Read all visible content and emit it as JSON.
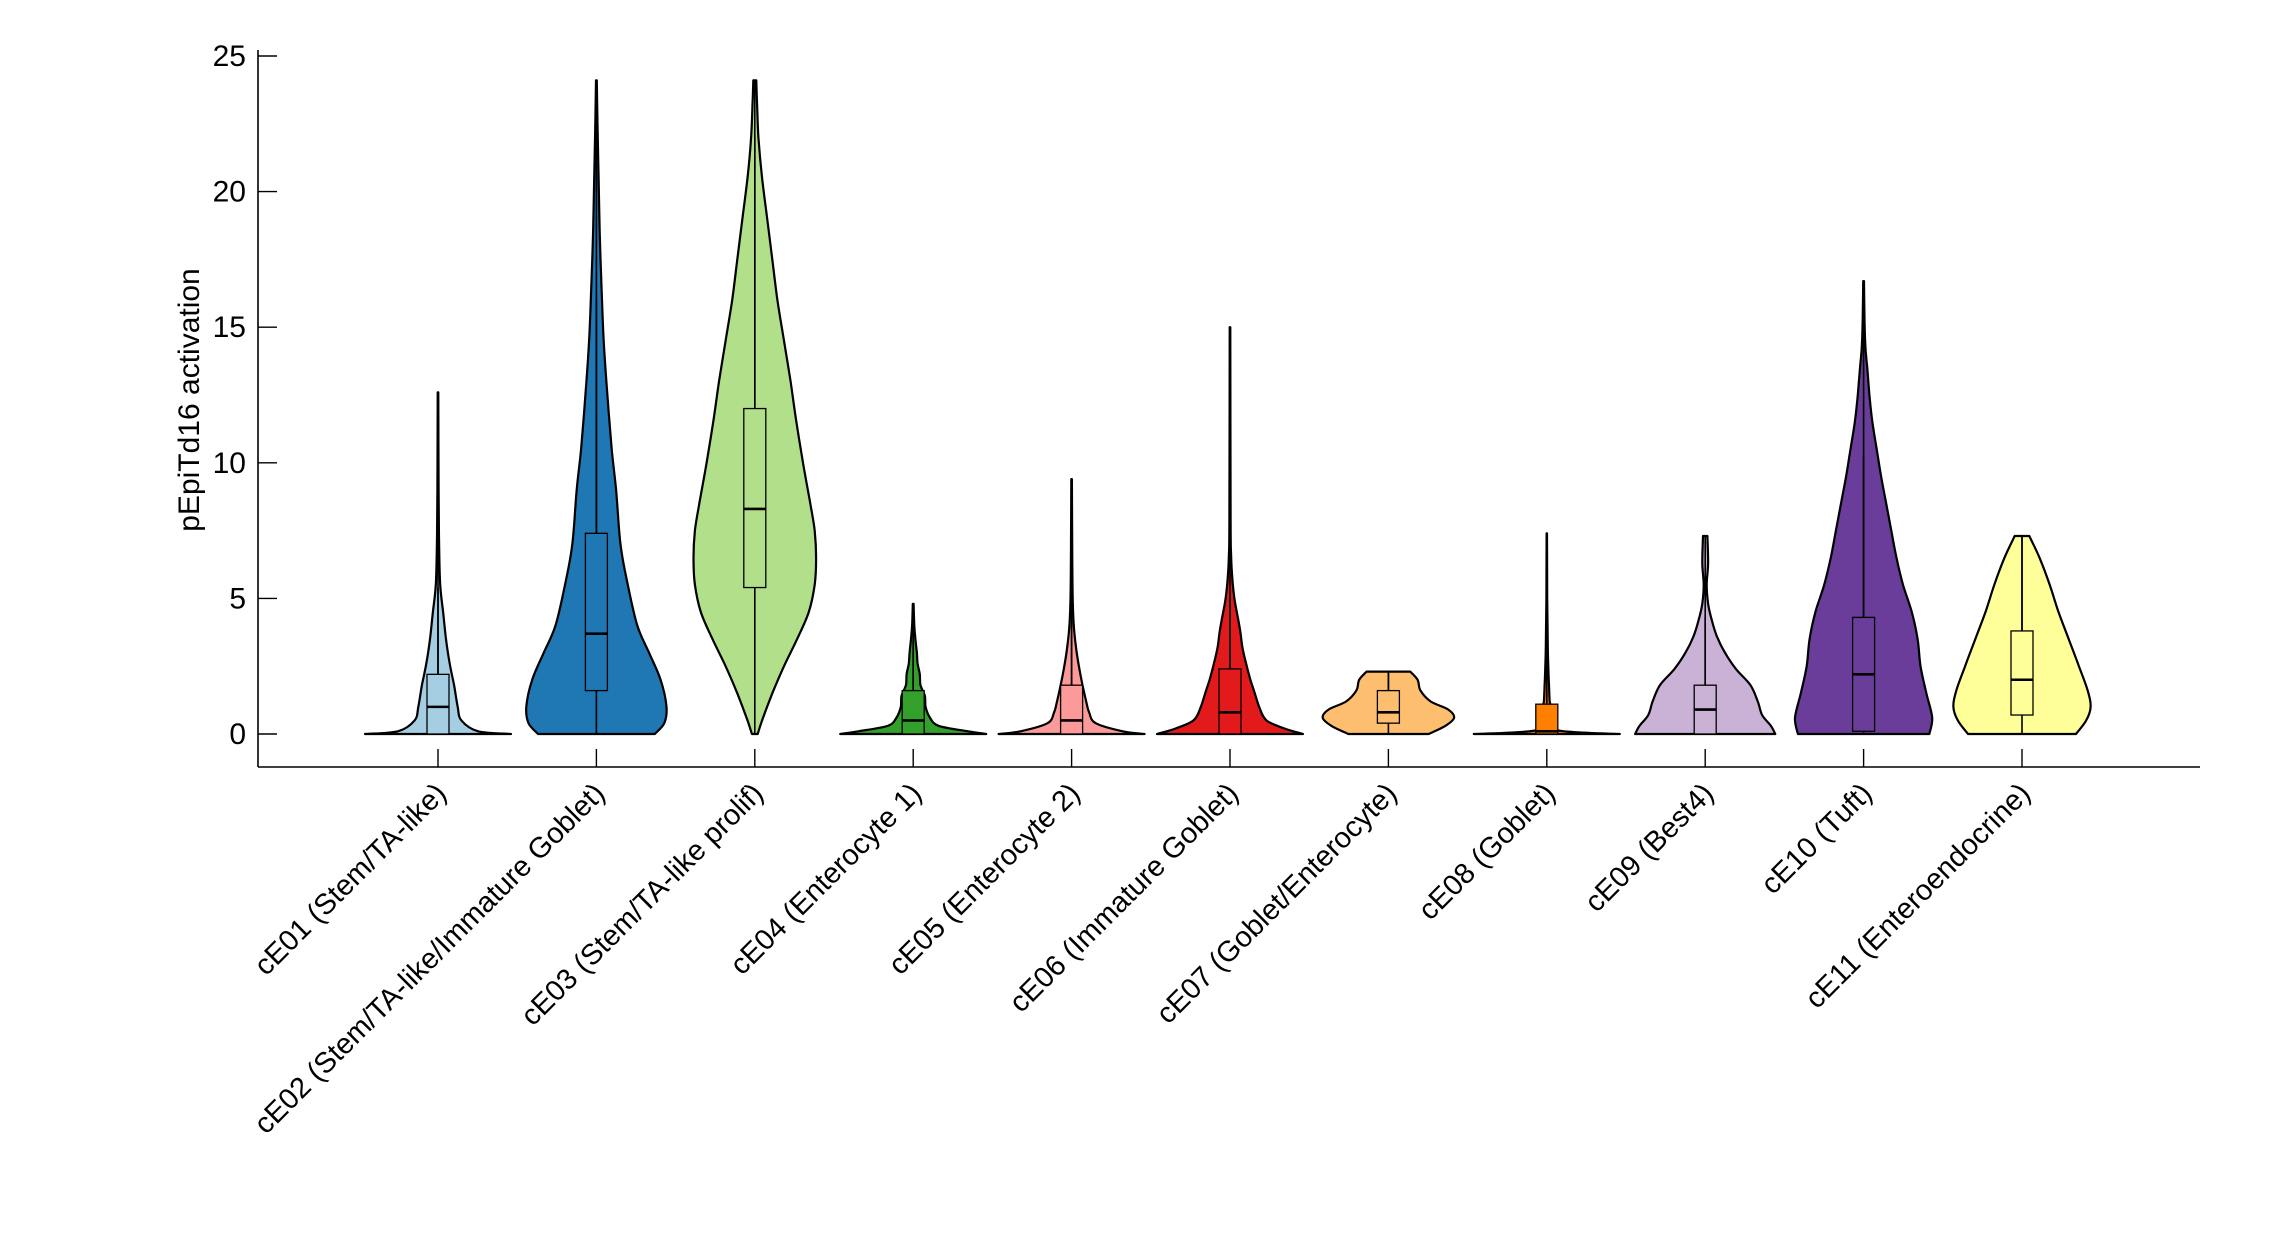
{
  "chart_data": {
    "type": "violin",
    "title": "",
    "xlabel": "",
    "ylabel": "pEpiTd16 activation",
    "ylim": [
      -1.2,
      25.3
    ],
    "yticks": [
      0,
      5,
      10,
      15,
      20,
      25
    ],
    "ytick_labels": [
      "0",
      "5",
      "10",
      "15",
      "20",
      "25"
    ],
    "grid": false,
    "legend": "none",
    "categories": [
      "cE01 (Stem/TA-like)",
      "cE02 (Stem/TA-like/Immature Goblet)",
      "cE03 (Stem/TA-like prolif)",
      "cE04 (Enterocyte 1)",
      "cE05 (Enterocyte 2)",
      "cE06 (Immature Goblet)",
      "cE07 (Goblet/Enterocyte)",
      "cE08 (Goblet)",
      "cE09 (Best4)",
      "cE10 (Tuft)",
      "cE11 (Enteroendocrine)"
    ],
    "series": [
      {
        "name": "cE01 (Stem/TA-like)",
        "color": "#a6cee3",
        "min": 0,
        "q1": 0,
        "median": 1.0,
        "q3": 2.2,
        "whisker_high": 5.4,
        "max": 12.6,
        "density": [
          [
            0,
            1.0
          ],
          [
            0.1,
            0.55
          ],
          [
            0.5,
            0.32
          ],
          [
            1.0,
            0.27
          ],
          [
            1.8,
            0.22
          ],
          [
            2.6,
            0.16
          ],
          [
            3.5,
            0.11
          ],
          [
            4.5,
            0.07
          ],
          [
            5.5,
            0.03
          ],
          [
            7,
            0.015
          ],
          [
            9,
            0.008
          ],
          [
            12.6,
            0.004
          ]
        ]
      },
      {
        "name": "cE02 (Stem/TA-like/Immature Goblet)",
        "color": "#1f78b4",
        "min": 0,
        "q1": 1.6,
        "median": 3.7,
        "q3": 7.4,
        "whisker_high": 16.0,
        "max": 24.1,
        "density": [
          [
            0,
            0.8
          ],
          [
            0.4,
            0.93
          ],
          [
            1.0,
            0.96
          ],
          [
            2.0,
            0.88
          ],
          [
            3.0,
            0.72
          ],
          [
            4.0,
            0.56
          ],
          [
            5.5,
            0.43
          ],
          [
            7.0,
            0.33
          ],
          [
            9.0,
            0.27
          ],
          [
            10.5,
            0.21
          ],
          [
            12.5,
            0.15
          ],
          [
            14.5,
            0.1
          ],
          [
            16.5,
            0.07
          ],
          [
            18.5,
            0.045
          ],
          [
            20.5,
            0.03
          ],
          [
            22.5,
            0.015
          ],
          [
            24.1,
            0.005
          ]
        ]
      },
      {
        "name": "cE03 (Stem/TA-like prolif)",
        "color": "#b2df8a",
        "min": 0,
        "q1": 5.4,
        "median": 8.3,
        "q3": 12.0,
        "whisker_high": 22.0,
        "max": 24.1,
        "density": [
          [
            0,
            0.04
          ],
          [
            0.5,
            0.1
          ],
          [
            1.5,
            0.24
          ],
          [
            2.5,
            0.4
          ],
          [
            3.5,
            0.58
          ],
          [
            4.5,
            0.74
          ],
          [
            5.5,
            0.82
          ],
          [
            6.5,
            0.84
          ],
          [
            7.5,
            0.82
          ],
          [
            8.5,
            0.76
          ],
          [
            10,
            0.66
          ],
          [
            11.5,
            0.57
          ],
          [
            13,
            0.49
          ],
          [
            14.5,
            0.4
          ],
          [
            16,
            0.31
          ],
          [
            17.5,
            0.24
          ],
          [
            19,
            0.17
          ],
          [
            20.5,
            0.1
          ],
          [
            22,
            0.05
          ],
          [
            23.3,
            0.03
          ],
          [
            24.1,
            0.02
          ]
        ]
      },
      {
        "name": "cE04 (Enterocyte 1)",
        "color": "#33a02c",
        "min": 0,
        "q1": 0,
        "median": 0.5,
        "q3": 1.6,
        "whisker_high": 3.6,
        "max": 4.8,
        "density": [
          [
            0,
            1.0
          ],
          [
            0.1,
            0.75
          ],
          [
            0.3,
            0.35
          ],
          [
            0.6,
            0.23
          ],
          [
            1.0,
            0.17
          ],
          [
            1.4,
            0.16
          ],
          [
            1.8,
            0.1
          ],
          [
            2.2,
            0.09
          ],
          [
            2.6,
            0.06
          ],
          [
            3.0,
            0.05
          ],
          [
            3.5,
            0.03
          ],
          [
            4.0,
            0.015
          ],
          [
            4.8,
            0.005
          ]
        ]
      },
      {
        "name": "cE05 (Enterocyte 2)",
        "color": "#fb9a99",
        "min": 0,
        "q1": 0,
        "median": 0.5,
        "q3": 1.8,
        "whisker_high": 4.0,
        "max": 9.4,
        "density": [
          [
            0,
            1.0
          ],
          [
            0.1,
            0.7
          ],
          [
            0.4,
            0.33
          ],
          [
            0.8,
            0.24
          ],
          [
            1.2,
            0.2
          ],
          [
            1.8,
            0.15
          ],
          [
            2.5,
            0.1
          ],
          [
            3.2,
            0.06
          ],
          [
            4.0,
            0.03
          ],
          [
            5.0,
            0.015
          ],
          [
            7.0,
            0.008
          ],
          [
            9.4,
            0.004
          ]
        ]
      },
      {
        "name": "cE06 (Immature Goblet)",
        "color": "#e31a1c",
        "min": 0,
        "q1": 0,
        "median": 0.8,
        "q3": 2.4,
        "whisker_high": 5.0,
        "max": 15.0,
        "density": [
          [
            0,
            1.0
          ],
          [
            0.2,
            0.75
          ],
          [
            0.5,
            0.5
          ],
          [
            1.0,
            0.4
          ],
          [
            1.5,
            0.34
          ],
          [
            2.0,
            0.28
          ],
          [
            2.6,
            0.22
          ],
          [
            3.2,
            0.17
          ],
          [
            3.8,
            0.14
          ],
          [
            4.4,
            0.1
          ],
          [
            5.0,
            0.06
          ],
          [
            5.8,
            0.03
          ],
          [
            6.6,
            0.015
          ],
          [
            8,
            0.008
          ],
          [
            15,
            0.004
          ]
        ]
      },
      {
        "name": "cE07 (Goblet/Enterocyte)",
        "color": "#fdbf6f",
        "min": 0,
        "q1": 0.4,
        "median": 0.8,
        "q3": 1.6,
        "whisker_high": 2.3,
        "max": 2.3,
        "density": [
          [
            0,
            0.55
          ],
          [
            0.3,
            0.78
          ],
          [
            0.6,
            0.9
          ],
          [
            0.9,
            0.82
          ],
          [
            1.2,
            0.58
          ],
          [
            1.6,
            0.44
          ],
          [
            2.0,
            0.4
          ],
          [
            2.3,
            0.3
          ]
        ]
      },
      {
        "name": "cE08 (Goblet)",
        "color": "#ff7f00",
        "min": 0,
        "q1": 0,
        "median": 0.1,
        "q3": 1.1,
        "whisker_high": 1.6,
        "max": 7.4,
        "density": [
          [
            0,
            1.0
          ],
          [
            0.05,
            0.5
          ],
          [
            0.15,
            0.12
          ],
          [
            0.4,
            0.07
          ],
          [
            1.0,
            0.06
          ],
          [
            1.2,
            0.04
          ],
          [
            1.8,
            0.03
          ],
          [
            2.5,
            0.02
          ],
          [
            3.5,
            0.012
          ],
          [
            5,
            0.006
          ],
          [
            7.4,
            0.003
          ]
        ]
      },
      {
        "name": "cE09 (Best4)",
        "color": "#cab2d6",
        "min": 0,
        "q1": 0,
        "median": 0.9,
        "q3": 1.8,
        "whisker_high": 4.3,
        "max": 7.3,
        "density": [
          [
            0,
            0.96
          ],
          [
            0.3,
            0.9
          ],
          [
            0.7,
            0.78
          ],
          [
            1.2,
            0.72
          ],
          [
            1.8,
            0.62
          ],
          [
            2.4,
            0.42
          ],
          [
            3.0,
            0.27
          ],
          [
            3.6,
            0.16
          ],
          [
            4.2,
            0.09
          ],
          [
            4.8,
            0.04
          ],
          [
            5.5,
            0.02
          ],
          [
            6.3,
            0.04
          ],
          [
            7.3,
            0.03
          ]
        ]
      },
      {
        "name": "cE10 (Tuft)",
        "color": "#6a3d9a",
        "min": 0,
        "q1": 0.1,
        "median": 2.2,
        "q3": 4.3,
        "whisker_high": 10.3,
        "max": 16.7,
        "density": [
          [
            0,
            0.9
          ],
          [
            0.6,
            0.94
          ],
          [
            1.5,
            0.86
          ],
          [
            2.5,
            0.78
          ],
          [
            3.5,
            0.74
          ],
          [
            4.5,
            0.66
          ],
          [
            5.5,
            0.54
          ],
          [
            6.5,
            0.45
          ],
          [
            7.5,
            0.38
          ],
          [
            8.5,
            0.31
          ],
          [
            9.5,
            0.24
          ],
          [
            10.5,
            0.18
          ],
          [
            11.5,
            0.12
          ],
          [
            12.5,
            0.08
          ],
          [
            13.5,
            0.05
          ],
          [
            14.5,
            0.02
          ],
          [
            16.7,
            0.005
          ]
        ]
      },
      {
        "name": "cE11 (Enteroendocrine)",
        "color": "#ffff99",
        "min": 0,
        "q1": 0.7,
        "median": 2.0,
        "q3": 3.8,
        "whisker_high": 7.3,
        "max": 7.3,
        "density": [
          [
            0,
            0.74
          ],
          [
            0.5,
            0.88
          ],
          [
            1.0,
            0.94
          ],
          [
            1.6,
            0.9
          ],
          [
            2.5,
            0.78
          ],
          [
            3.5,
            0.64
          ],
          [
            4.5,
            0.5
          ],
          [
            5.5,
            0.38
          ],
          [
            6.5,
            0.24
          ],
          [
            7.3,
            0.1
          ]
        ]
      }
    ]
  }
}
